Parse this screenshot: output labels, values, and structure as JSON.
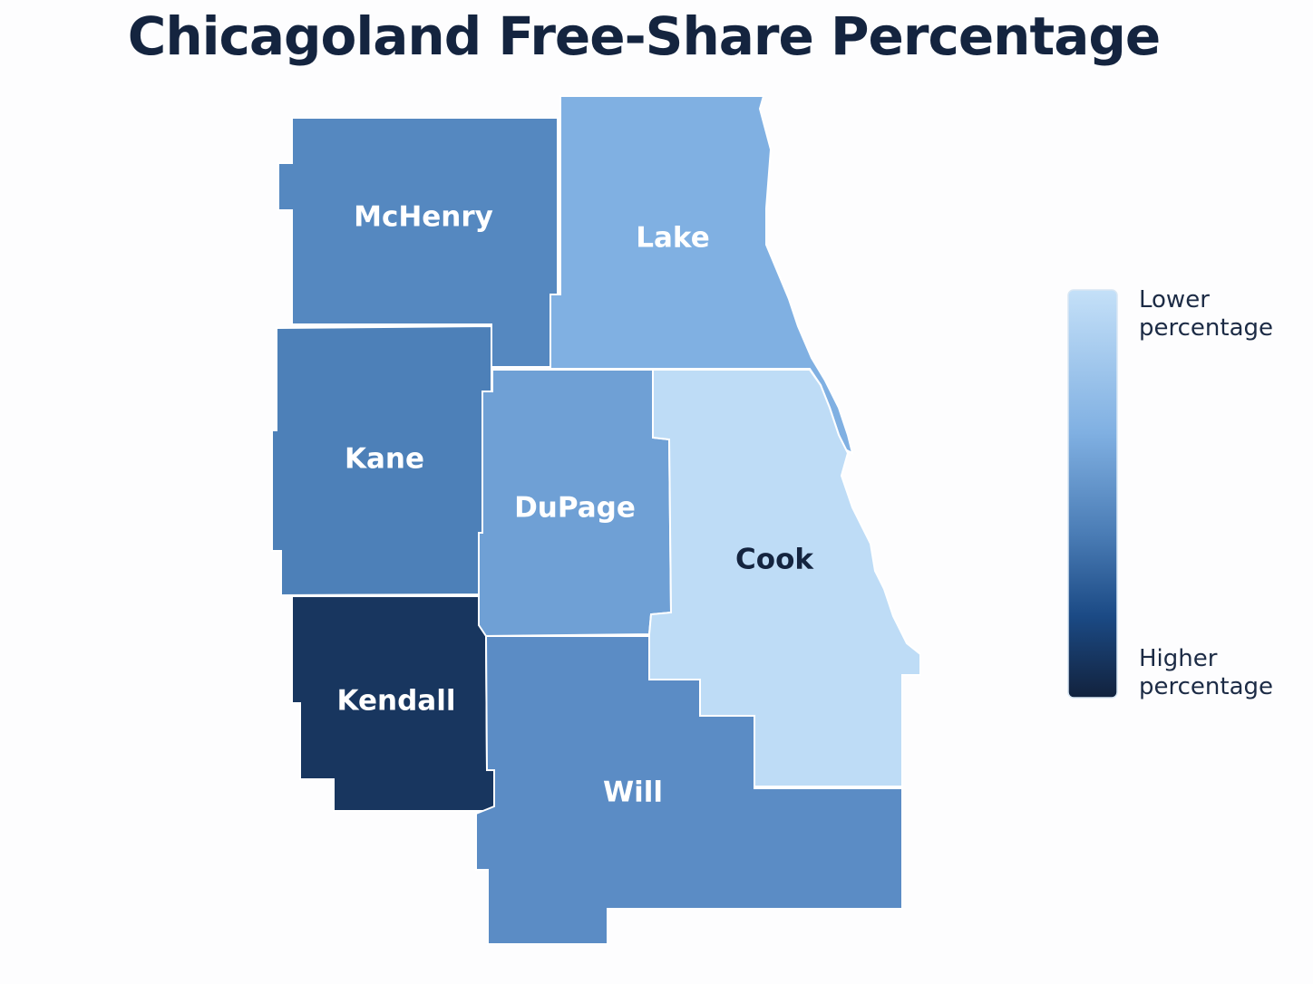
{
  "title": "Chicagoland Free-Share Percentage",
  "counties": [
    {
      "name": "McHenry"
    },
    {
      "name": "Lake"
    },
    {
      "name": "Kane"
    },
    {
      "name": "DuPage"
    },
    {
      "name": "Cook"
    },
    {
      "name": "Kendall"
    },
    {
      "name": "Will"
    }
  ],
  "legend": {
    "low": "Lower percentage",
    "high": "Higher percentage"
  }
}
